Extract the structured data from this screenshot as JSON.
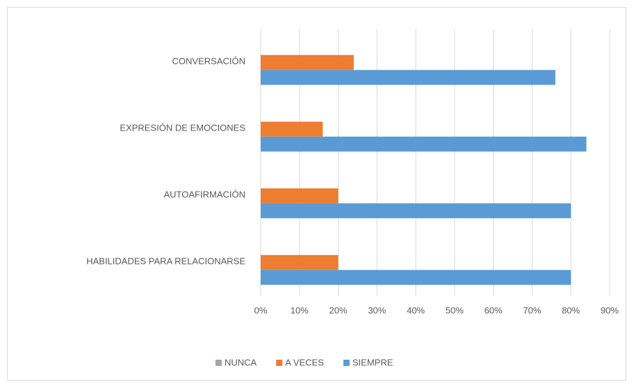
{
  "chart_data": {
    "type": "hbar",
    "categories": [
      "CONVERSACIÓN",
      "EXPRESIÓN DE EMOCIONES",
      "AUTOAFIRMACIÓN",
      "HABILIDADES PARA RELACIONARSE"
    ],
    "series": [
      {
        "name": "NUNCA",
        "color": "#a5a5a5",
        "values": [
          0,
          0,
          0,
          0
        ]
      },
      {
        "name": "A VECES",
        "color": "#ed7d31",
        "values": [
          24,
          16,
          20,
          20
        ]
      },
      {
        "name": "SIEMPRE",
        "color": "#5b9bd5",
        "values": [
          76,
          84,
          80,
          80
        ]
      }
    ],
    "xlim": [
      0,
      90
    ],
    "xticks": [
      {
        "value": 0,
        "label": "0%"
      },
      {
        "value": 10,
        "label": "10%"
      },
      {
        "value": 20,
        "label": "20%"
      },
      {
        "value": 30,
        "label": "30%"
      },
      {
        "value": 40,
        "label": "40%"
      },
      {
        "value": 50,
        "label": "50%"
      },
      {
        "value": 60,
        "label": "60%"
      },
      {
        "value": 70,
        "label": "70%"
      },
      {
        "value": 80,
        "label": "80%"
      },
      {
        "value": 90,
        "label": "90%"
      }
    ],
    "grid": true,
    "legend": "bottom"
  }
}
